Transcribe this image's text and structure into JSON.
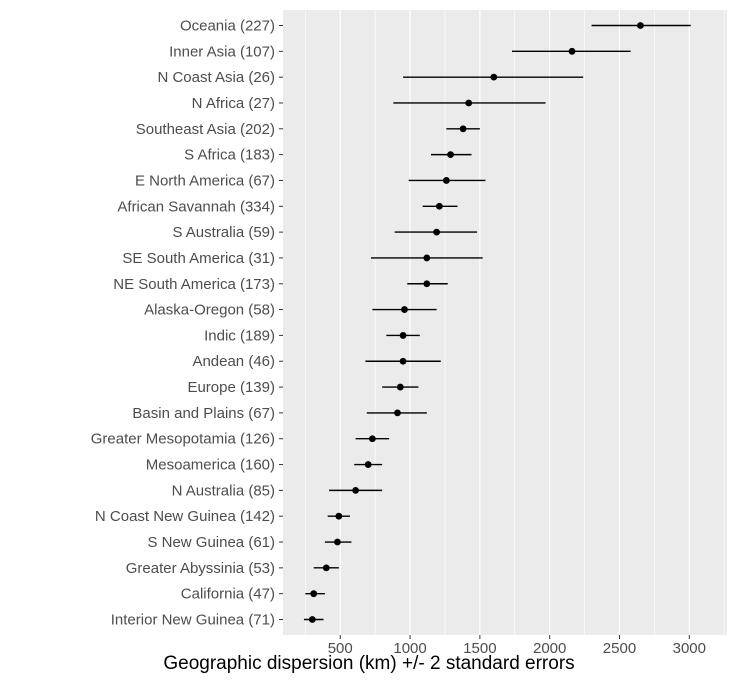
{
  "chart_data": {
    "type": "scatter",
    "title": "",
    "xlabel": "Geographic dispersion (km) +/- 2 standard errors",
    "ylabel": "",
    "xlim": [
      90,
      3270
    ],
    "x_ticks": [
      500,
      1000,
      1500,
      2000,
      2500,
      3000
    ],
    "x_minor_ticks": [
      250,
      750,
      1250,
      1750,
      2250,
      2750,
      3250
    ],
    "grid": true,
    "legend": false,
    "error_bars": "+/- 2 standard errors",
    "points": [
      {
        "label": "Oceania (227)",
        "value": 2650,
        "lo": 2300,
        "hi": 3010
      },
      {
        "label": "Inner Asia (107)",
        "value": 2160,
        "lo": 1730,
        "hi": 2580
      },
      {
        "label": "N Coast Asia (26)",
        "value": 1600,
        "lo": 950,
        "hi": 2240
      },
      {
        "label": "N Africa (27)",
        "value": 1420,
        "lo": 880,
        "hi": 1970
      },
      {
        "label": "Southeast Asia (202)",
        "value": 1380,
        "lo": 1260,
        "hi": 1500
      },
      {
        "label": "S Africa (183)",
        "value": 1290,
        "lo": 1150,
        "hi": 1440
      },
      {
        "label": "E North America (67)",
        "value": 1260,
        "lo": 990,
        "hi": 1540
      },
      {
        "label": "African Savannah (334)",
        "value": 1210,
        "lo": 1090,
        "hi": 1340
      },
      {
        "label": "S Australia (59)",
        "value": 1190,
        "lo": 890,
        "hi": 1480
      },
      {
        "label": "SE South America (31)",
        "value": 1120,
        "lo": 720,
        "hi": 1520
      },
      {
        "label": "NE South America (173)",
        "value": 1120,
        "lo": 980,
        "hi": 1270
      },
      {
        "label": "Alaska-Oregon (58)",
        "value": 960,
        "lo": 730,
        "hi": 1190
      },
      {
        "label": "Indic (189)",
        "value": 950,
        "lo": 830,
        "hi": 1070
      },
      {
        "label": "Andean (46)",
        "value": 950,
        "lo": 680,
        "hi": 1220
      },
      {
        "label": "Europe (139)",
        "value": 930,
        "lo": 800,
        "hi": 1060
      },
      {
        "label": "Basin and Plains (67)",
        "value": 910,
        "lo": 690,
        "hi": 1120
      },
      {
        "label": "Greater Mesopotamia (126)",
        "value": 730,
        "lo": 610,
        "hi": 850
      },
      {
        "label": "Mesoamerica (160)",
        "value": 700,
        "lo": 600,
        "hi": 800
      },
      {
        "label": "N Australia (85)",
        "value": 610,
        "lo": 420,
        "hi": 800
      },
      {
        "label": "N Coast New Guinea (142)",
        "value": 490,
        "lo": 410,
        "hi": 570
      },
      {
        "label": "S New Guinea (61)",
        "value": 480,
        "lo": 390,
        "hi": 580
      },
      {
        "label": "Greater Abyssinia (53)",
        "value": 400,
        "lo": 310,
        "hi": 490
      },
      {
        "label": "California (47)",
        "value": 310,
        "lo": 250,
        "hi": 390
      },
      {
        "label": "Interior New Guinea (71)",
        "value": 300,
        "lo": 240,
        "hi": 380
      }
    ],
    "colors": {
      "panel_bg": "#ebebeb",
      "grid": "#ffffff",
      "point": "#000000",
      "error_bar": "#000000",
      "tick_label": "#4d4d4d",
      "tick_mark": "#333333",
      "axis_title": "#000000"
    }
  }
}
